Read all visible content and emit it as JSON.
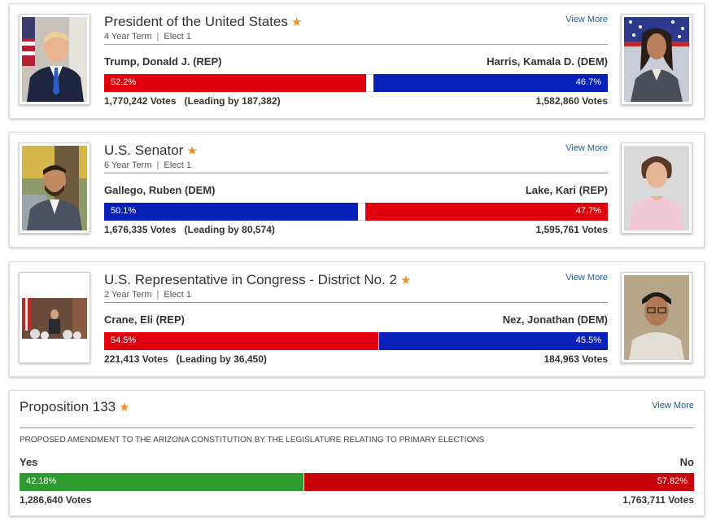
{
  "races": [
    {
      "title": "President of the United States",
      "term": "4 Year Term",
      "elect": "Elect 1",
      "view_more": "View More",
      "left": {
        "name": "Trump, Donald J. (REP)",
        "pct": "52.2%",
        "share": 52.2,
        "votes": "1,770,242 Votes",
        "lead": "(Leading by 187,382)",
        "color": "#e0000b"
      },
      "right": {
        "name": "Harris, Kamala D. (DEM)",
        "pct": "46.7%",
        "share": 46.7,
        "votes": "1,582,860 Votes",
        "color": "#0921b8"
      }
    },
    {
      "title": "U.S. Senator",
      "term": "6 Year Term",
      "elect": "Elect 1",
      "view_more": "View More",
      "left": {
        "name": "Gallego, Ruben (DEM)",
        "pct": "50.1%",
        "share": 50.1,
        "votes": "1,676,335 Votes",
        "lead": "(Leading by 80,574)",
        "color": "#0921b8"
      },
      "right": {
        "name": "Lake, Kari (REP)",
        "pct": "47.7%",
        "share": 47.7,
        "votes": "1,595,761 Votes",
        "color": "#e0000b"
      }
    },
    {
      "title": "U.S. Representative in Congress - District No. 2",
      "term": "2 Year Term",
      "elect": "Elect 1",
      "view_more": "View More",
      "left": {
        "name": "Crane, Eli (REP)",
        "pct": "54.5%",
        "share": 54.5,
        "votes": "221,413 Votes",
        "lead": "(Leading by 36,450)",
        "color": "#e0000b"
      },
      "right": {
        "name": "Nez, Jonathan (DEM)",
        "pct": "45.5%",
        "share": 45.5,
        "votes": "184,963 Votes",
        "color": "#0921b8"
      }
    }
  ],
  "proposition": {
    "title": "Proposition 133",
    "view_more": "View More",
    "description": "PROPOSED AMENDMENT TO THE ARIZONA CONSTITUTION BY THE LEGISLATURE RELATING TO PRIMARY ELECTIONS",
    "yes": {
      "label": "Yes",
      "pct": "42.18%",
      "share": 42.18,
      "votes": "1,286,640 Votes",
      "color": "#2f9a2f"
    },
    "no": {
      "label": "No",
      "pct": "57.82%",
      "share": 57.82,
      "votes": "1,763,711 Votes",
      "color": "#c8000a"
    }
  },
  "icons": {
    "star": "star-icon"
  },
  "accent_colors": {
    "star": "#f0901e",
    "link": "#1a5ea0"
  }
}
